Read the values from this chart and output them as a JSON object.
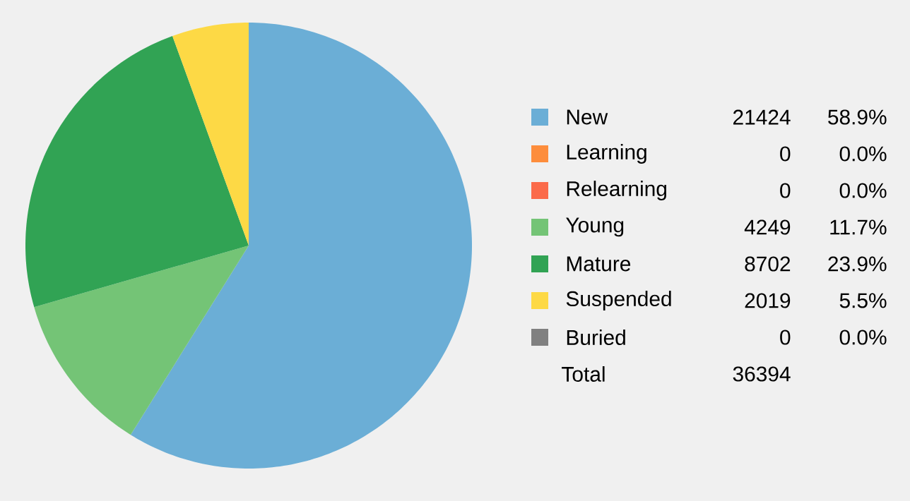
{
  "chart_data": {
    "type": "pie",
    "categories": [
      "New",
      "Learning",
      "Relearning",
      "Young",
      "Mature",
      "Suspended",
      "Buried"
    ],
    "values": [
      21424,
      0,
      0,
      4249,
      8702,
      2019,
      0
    ],
    "colors": [
      "#6baed6",
      "#fd8d3c",
      "#fb6a4a",
      "#74c476",
      "#31a354",
      "#fdd945",
      "#808080"
    ],
    "data_labels": true,
    "value_labels": [
      "21424",
      "0",
      "0",
      "4249",
      "8702",
      "2019",
      "0"
    ],
    "legend": "right",
    "annotations": [
      "58.9%",
      "0.0%",
      "0.0%",
      "11.7%",
      "23.9%",
      "5.5%",
      "0.0%",
      "Total",
      "36394"
    ]
  }
}
